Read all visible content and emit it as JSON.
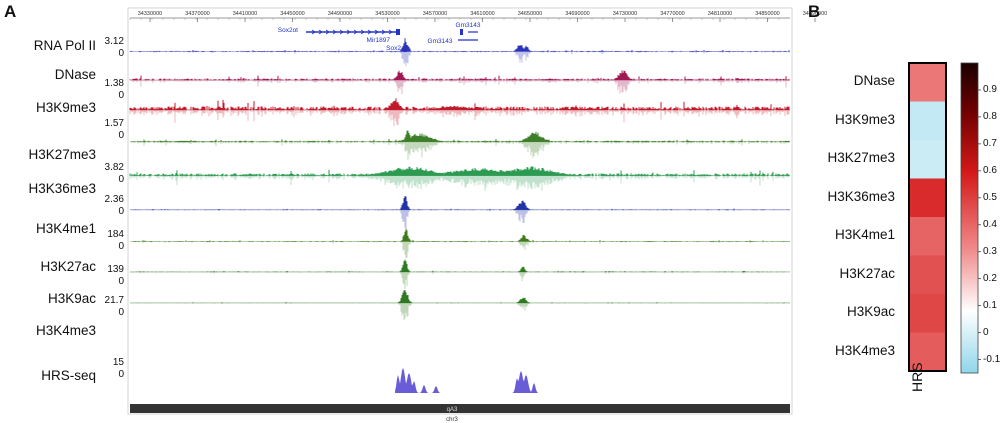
{
  "panel_a": {
    "letter": "A",
    "ruler_ticks": [
      "34330000",
      "34370000",
      "34410000",
      "34450000",
      "34490000",
      "34530000",
      "34570000",
      "34610000",
      "34650000",
      "34690000",
      "34730000",
      "34770000",
      "34810000",
      "34850000",
      "34890000"
    ],
    "genes": [
      {
        "label": "Sox2ot"
      },
      {
        "label": "Gm3143"
      },
      {
        "label": "Mir1897"
      },
      {
        "label": "Gm3143"
      },
      {
        "label": "Sox2"
      }
    ],
    "tracks": [
      {
        "label": "RNA Pol II",
        "scale": "3.12",
        "zero": "0",
        "color": "#2b34b8"
      },
      {
        "label": "DNase",
        "scale": "1.38",
        "zero": "0",
        "color": "#a01850"
      },
      {
        "label": "H3K9me3",
        "scale": "1.57",
        "zero": "0",
        "color": "#c0192a"
      },
      {
        "label": "H3K27me3",
        "scale": "3.82",
        "zero": "0",
        "color": "#3d7f28"
      },
      {
        "label": "H3K36me3",
        "scale": "2.36",
        "zero": "0",
        "color": "#2d9a52"
      },
      {
        "label": "H3K4me1",
        "scale": "184",
        "zero": "0",
        "color": "#2233a8"
      },
      {
        "label": "H3K27ac",
        "scale": "139",
        "zero": "0",
        "color": "#3e7a1c"
      },
      {
        "label": "H3K9ac",
        "scale": "21.7",
        "zero": "0",
        "color": "#2e7a22"
      },
      {
        "label": "H3K4me3",
        "scale": "",
        "zero": "",
        "color": "#2e7a22"
      },
      {
        "label": "HRS-seq",
        "scale": "15",
        "zero": "0",
        "color": "#6a5bd6"
      }
    ],
    "chrom_label": "qA3",
    "chrom_name": "chr3"
  },
  "panel_b": {
    "letter": "B",
    "column_label": "HRS",
    "rows": [
      {
        "label": "DNase",
        "value": 0.35
      },
      {
        "label": "H3K9me3",
        "value": -0.05
      },
      {
        "label": "H3K27me3",
        "value": -0.03
      },
      {
        "label": "H3K36me3",
        "value": 0.55
      },
      {
        "label": "H3K4me1",
        "value": 0.4
      },
      {
        "label": "H3K27ac",
        "value": 0.45
      },
      {
        "label": "H3K9ac",
        "value": 0.48
      },
      {
        "label": "H3K4me3",
        "value": 0.42
      }
    ],
    "colorbar_ticks": [
      "0.9",
      "0.8",
      "0.7",
      "0.6",
      "0.5",
      "0.4",
      "0.3",
      "0.2",
      "0.1",
      "0",
      "-0.1"
    ],
    "colorbar_range": [
      -0.15,
      1.0
    ]
  }
}
